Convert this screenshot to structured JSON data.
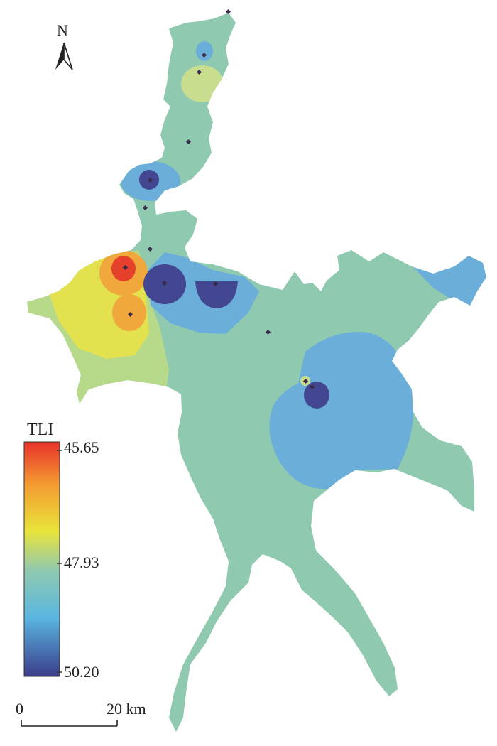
{
  "north_arrow": {
    "letter": "N",
    "icon": "north-arrow-icon"
  },
  "legend": {
    "title": "TLI",
    "max_label": "45.65",
    "mid_label": "47.93",
    "min_label": "50.20",
    "colors": [
      "#e8322a",
      "#f39a30",
      "#e9e43a",
      "#8fc9b0",
      "#5ab6e0",
      "#3a3c8a"
    ]
  },
  "scale_bar": {
    "zero_label": "0",
    "far_label": "20 km"
  },
  "colors": {
    "lake_base": "#8fc9b0",
    "high_tli_blue": "#6aaed9",
    "very_high_tli_indigo": "#434690",
    "low_tli_yellow": "#e3e24e",
    "orange": "#f0a73c",
    "red": "#e5402c",
    "station_marker": "#3a2a4a"
  },
  "stations_count": 14
}
